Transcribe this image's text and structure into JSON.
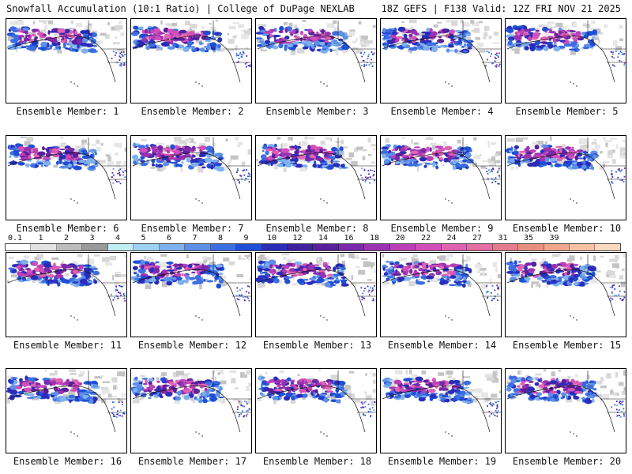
{
  "header": {
    "title_left": "Snowfall Accumulation (10:1 Ratio) | College of DuPage NEXLAB",
    "title_right": "18Z GEFS | F138 Valid: 12Z FRI NOV 21 2025"
  },
  "panels": [
    {
      "label": "Ensemble Member: 1"
    },
    {
      "label": "Ensemble Member: 2"
    },
    {
      "label": "Ensemble Member: 3"
    },
    {
      "label": "Ensemble Member: 4"
    },
    {
      "label": "Ensemble Member: 5"
    },
    {
      "label": "Ensemble Member: 6"
    },
    {
      "label": "Ensemble Member: 7"
    },
    {
      "label": "Ensemble Member: 8"
    },
    {
      "label": "Ensemble Member: 9"
    },
    {
      "label": "Ensemble Member: 10"
    },
    {
      "label": "Ensemble Member: 11"
    },
    {
      "label": "Ensemble Member: 12"
    },
    {
      "label": "Ensemble Member: 13"
    },
    {
      "label": "Ensemble Member: 14"
    },
    {
      "label": "Ensemble Member: 15"
    },
    {
      "label": "Ensemble Member: 16"
    },
    {
      "label": "Ensemble Member: 17"
    },
    {
      "label": "Ensemble Member: 18"
    },
    {
      "label": "Ensemble Member: 19"
    },
    {
      "label": "Ensemble Member: 20"
    }
  ],
  "legend": {
    "ticks": [
      "0.1",
      "1",
      "2",
      "3",
      "4",
      "5",
      "6",
      "7",
      "8",
      "9",
      "10",
      "12",
      "14",
      "16",
      "18",
      "20",
      "22",
      "24",
      "27",
      "31",
      "35",
      "39"
    ],
    "colors": [
      "#ffffff",
      "#e2e2e2",
      "#bdbdbd",
      "#9a9a9a",
      "#bfeff5",
      "#9fd2f2",
      "#7fb1ee",
      "#5d8fe8",
      "#3c6de2",
      "#1f4fd6",
      "#2a2db9",
      "#3f22a0",
      "#5a1f9a",
      "#7a2aa9",
      "#9a33b2",
      "#bb3fb8",
      "#d24fb9",
      "#e063b2",
      "#e56ea2",
      "#e57c8e",
      "#e98f80",
      "#f0a78c",
      "#f7c1a4",
      "#fbd9be"
    ]
  }
}
